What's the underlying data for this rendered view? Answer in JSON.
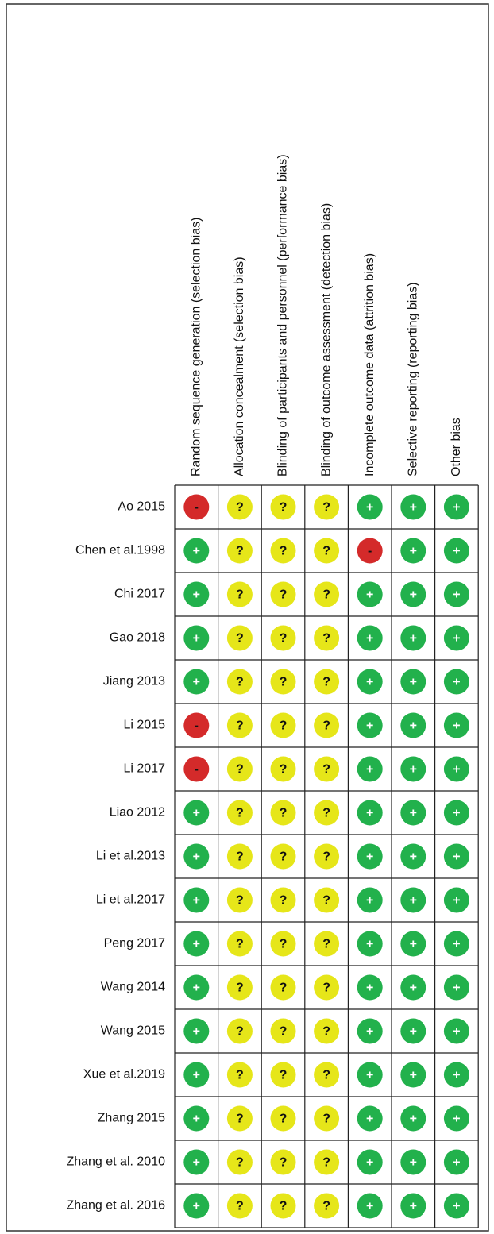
{
  "columns": [
    "Random sequence generation (selection bias)",
    "Allocation concealment (selection bias)",
    "Blinding of participants and personnel (performance bias)",
    "Blinding of outcome assessment (detection bias)",
    "Incomplete outcome data (attrition bias)",
    "Selective reporting (reporting bias)",
    "Other bias"
  ],
  "rows": [
    {
      "study": "Ao 2015",
      "judgments": [
        "-",
        "?",
        "?",
        "?",
        "+",
        "+",
        "+"
      ]
    },
    {
      "study": "Chen et al.1998",
      "judgments": [
        "+",
        "?",
        "?",
        "?",
        "-",
        "+",
        "+"
      ]
    },
    {
      "study": "Chi 2017",
      "judgments": [
        "+",
        "?",
        "?",
        "?",
        "+",
        "+",
        "+"
      ]
    },
    {
      "study": "Gao 2018",
      "judgments": [
        "+",
        "?",
        "?",
        "?",
        "+",
        "+",
        "+"
      ]
    },
    {
      "study": "Jiang 2013",
      "judgments": [
        "+",
        "?",
        "?",
        "?",
        "+",
        "+",
        "+"
      ]
    },
    {
      "study": "Li 2015",
      "judgments": [
        "-",
        "?",
        "?",
        "?",
        "+",
        "+",
        "+"
      ]
    },
    {
      "study": "Li 2017",
      "judgments": [
        "-",
        "?",
        "?",
        "?",
        "+",
        "+",
        "+"
      ]
    },
    {
      "study": "Liao 2012",
      "judgments": [
        "+",
        "?",
        "?",
        "?",
        "+",
        "+",
        "+"
      ]
    },
    {
      "study": "Li et al.2013",
      "judgments": [
        "+",
        "?",
        "?",
        "?",
        "+",
        "+",
        "+"
      ]
    },
    {
      "study": "Li et al.2017",
      "judgments": [
        "+",
        "?",
        "?",
        "?",
        "+",
        "+",
        "+"
      ]
    },
    {
      "study": "Peng 2017",
      "judgments": [
        "+",
        "?",
        "?",
        "?",
        "+",
        "+",
        "+"
      ]
    },
    {
      "study": "Wang 2014",
      "judgments": [
        "+",
        "?",
        "?",
        "?",
        "+",
        "+",
        "+"
      ]
    },
    {
      "study": "Wang 2015",
      "judgments": [
        "+",
        "?",
        "?",
        "?",
        "+",
        "+",
        "+"
      ]
    },
    {
      "study": "Xue et al.2019",
      "judgments": [
        "+",
        "?",
        "?",
        "?",
        "+",
        "+",
        "+"
      ]
    },
    {
      "study": "Zhang 2015",
      "judgments": [
        "+",
        "?",
        "?",
        "?",
        "+",
        "+",
        "+"
      ]
    },
    {
      "study": "Zhang et al. 2010",
      "judgments": [
        "+",
        "?",
        "?",
        "?",
        "+",
        "+",
        "+"
      ]
    },
    {
      "study": "Zhang et al. 2016",
      "judgments": [
        "+",
        "?",
        "?",
        "?",
        "+",
        "+",
        "+"
      ]
    }
  ]
}
